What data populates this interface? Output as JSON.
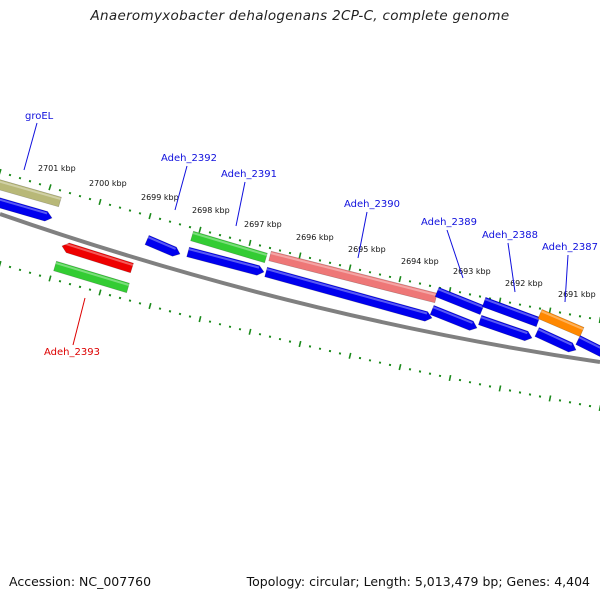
{
  "title": "Anaeromyxobacter dehalogenans 2CP-C, complete genome",
  "footer": {
    "accession": "Accession: NC_007760",
    "summary": "Topology: circular; Length: 5,013,479 bp; Genes: 4,404"
  },
  "colors": {
    "backbone": "#808080",
    "tick": "#1a8a1a",
    "forward_label": "#1010dd",
    "reverse_label": "#dd0000",
    "cds_blue": "#0000ee",
    "cds_green": "#33cc33",
    "cds_red": "#ee0000",
    "cds_olive": "#b8b878",
    "cds_pink": "#ee7777",
    "cds_orange": "#ff8800"
  },
  "scale_labels": [
    "2701 kbp",
    "2700 kbp",
    "2699 kbp",
    "2698 kbp",
    "2697 kbp",
    "2696 kbp",
    "2695 kbp",
    "2694 kbp",
    "2693 kbp",
    "2692 kbp",
    "2691 kbp"
  ],
  "gene_labels": [
    {
      "name": "groEL",
      "color": "forward"
    },
    {
      "name": "Adeh_2392",
      "color": "forward"
    },
    {
      "name": "Adeh_2391",
      "color": "forward"
    },
    {
      "name": "Adeh_2390",
      "color": "forward"
    },
    {
      "name": "Adeh_2389",
      "color": "forward"
    },
    {
      "name": "Adeh_2388",
      "color": "forward"
    },
    {
      "name": "Adeh_2387",
      "color": "forward"
    },
    {
      "name": "Adeh_2393",
      "color": "reverse"
    }
  ]
}
